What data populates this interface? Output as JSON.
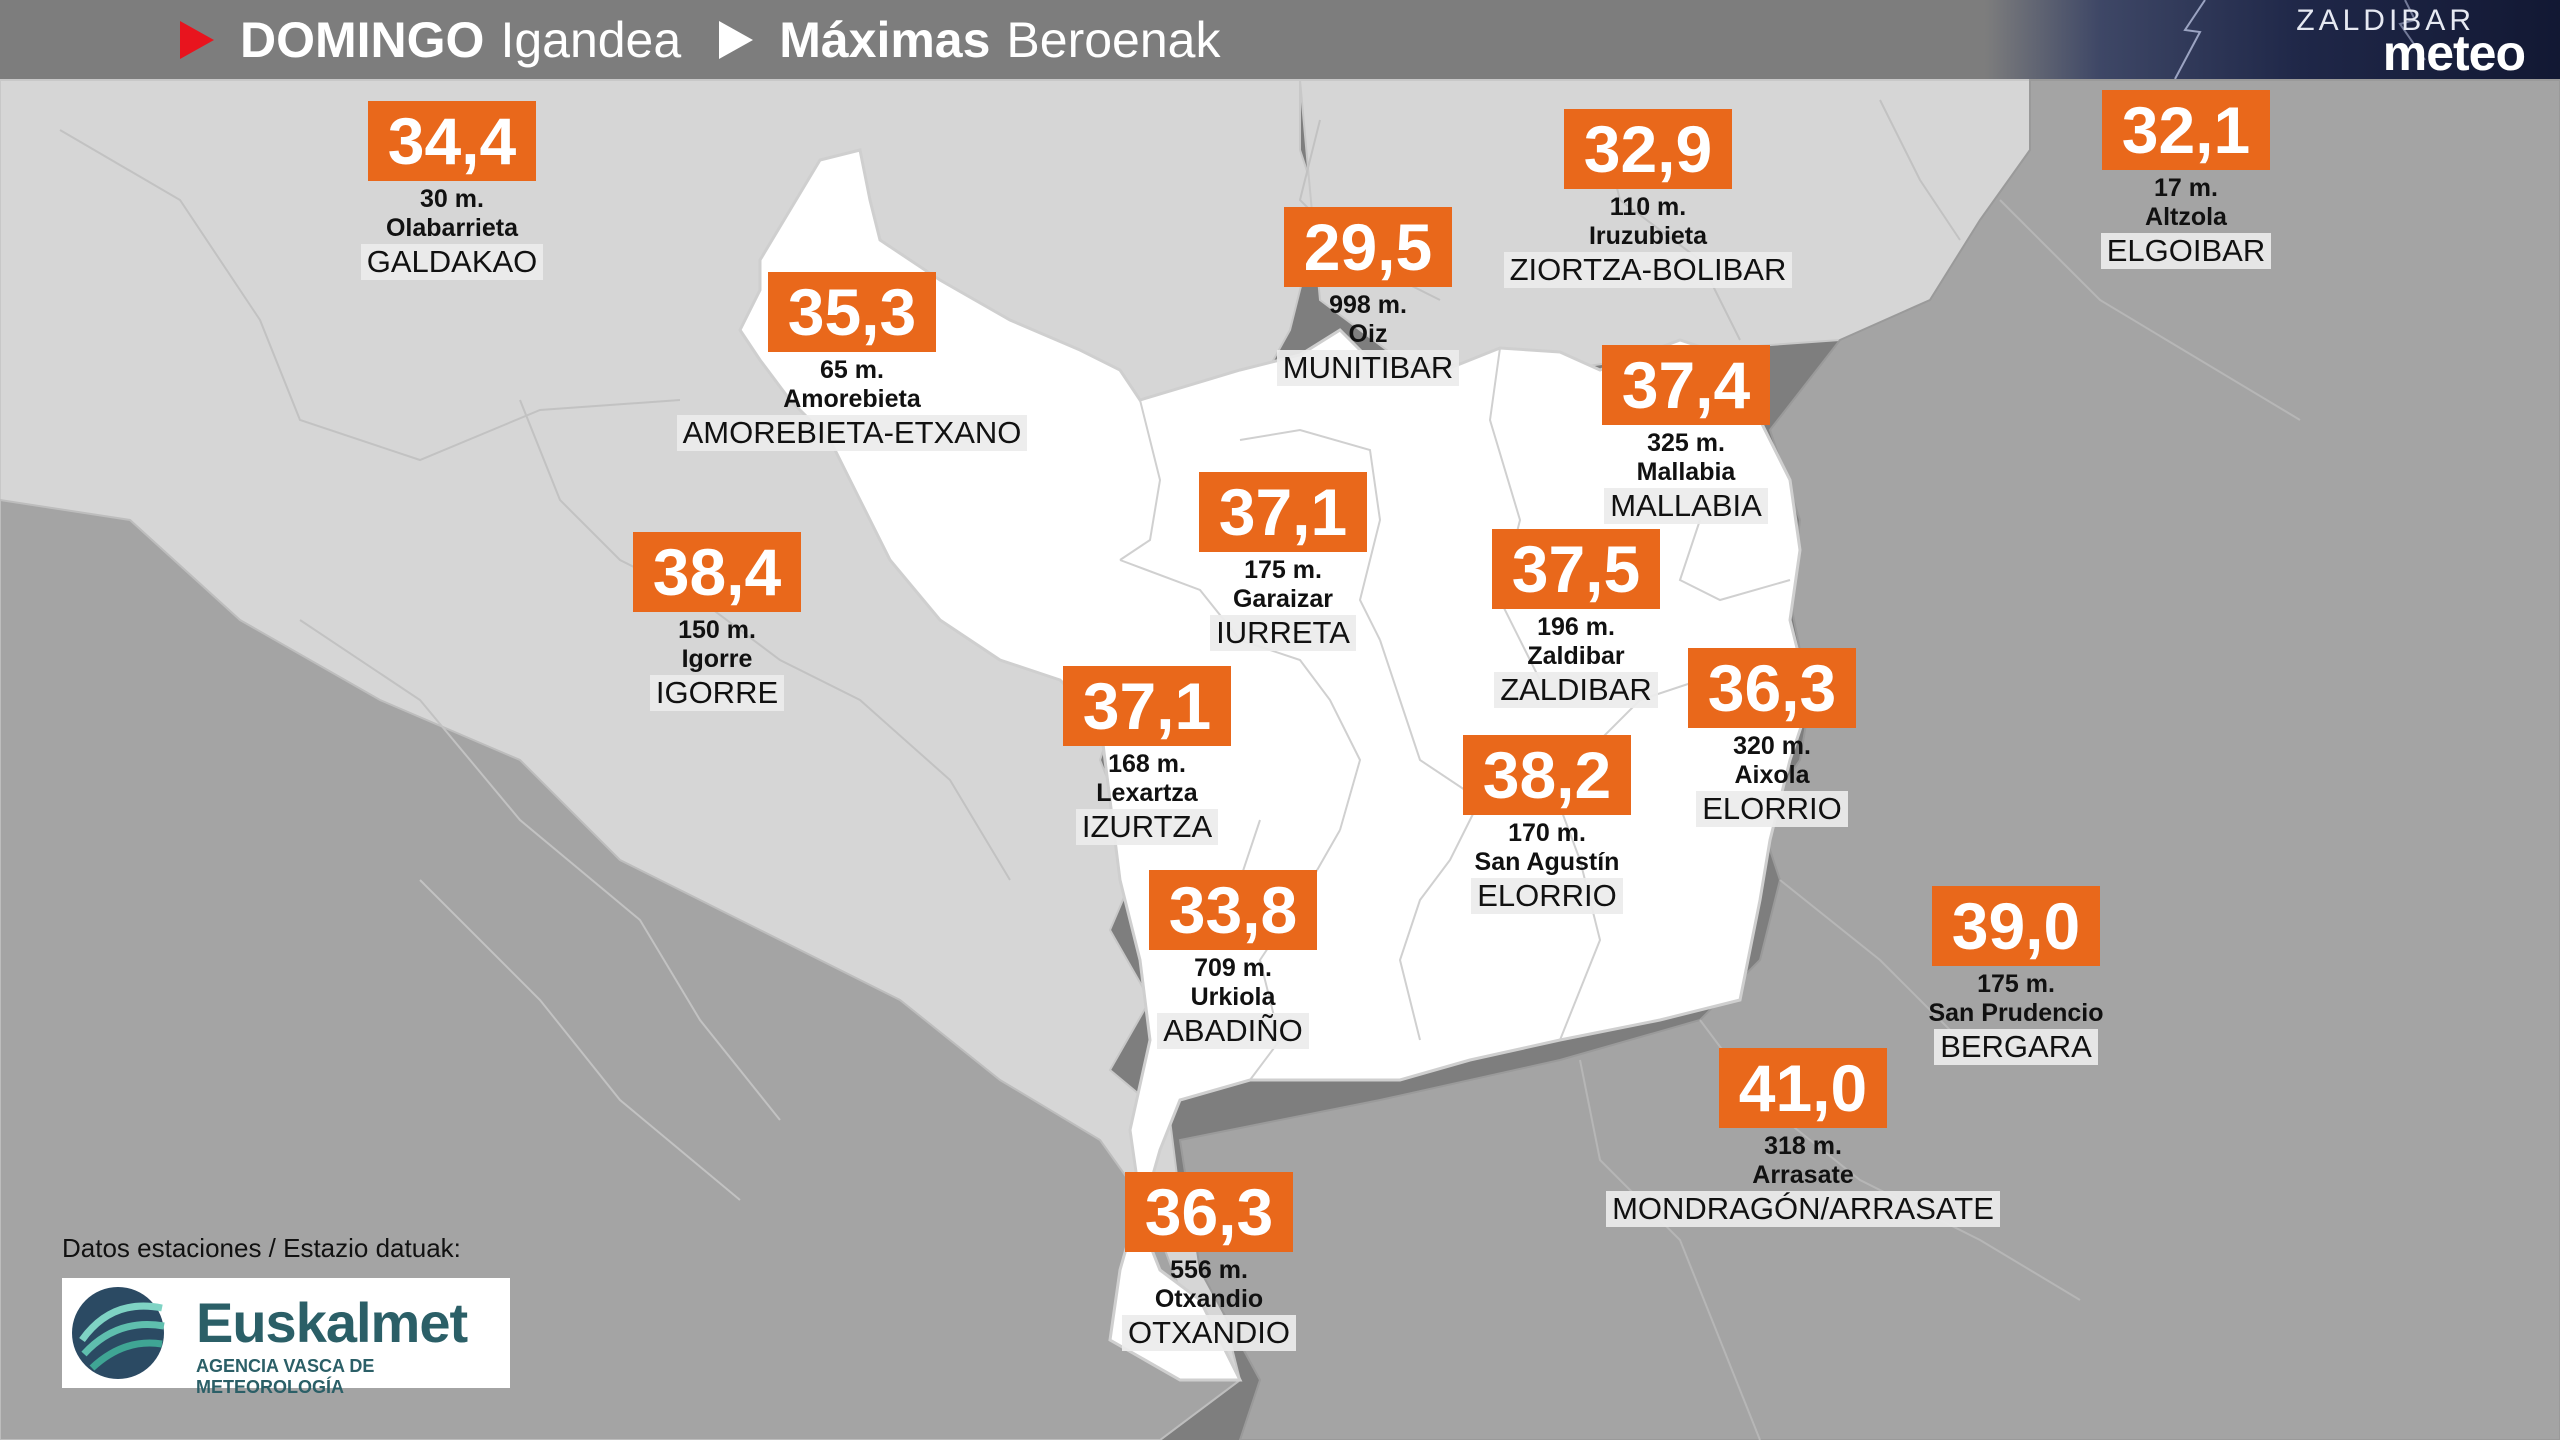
{
  "header": {
    "day_es": "DOMINGO",
    "day_eu": "Igandea",
    "title_es": "Máximas",
    "title_eu": "Beroenak"
  },
  "brand": {
    "top": "ZALDIBAR",
    "main": "meteo"
  },
  "credit": {
    "text": "Datos estaciones / Estazio datuak:",
    "logo_name": "Euskalmet",
    "logo_sub": "AGENCIA VASCA DE METEOROLOGÍA"
  },
  "colors": {
    "temp_box": "#e9681b",
    "highlight_region": "#ffffff",
    "nearby_region": "#d6d6d6",
    "far_region": "#a4a4a4",
    "header_red_arrow": "#e8141e"
  },
  "stations": [
    {
      "temp": "34,4",
      "alt": "30 m.",
      "name": "Olabarrieta",
      "muni": "GALDAKAO"
    },
    {
      "temp": "35,3",
      "alt": "65 m.",
      "name": "Amorebieta",
      "muni": "AMOREBIETA-ETXANO"
    },
    {
      "temp": "29,5",
      "alt": "998 m.",
      "name": "Oiz",
      "muni": "MUNITIBAR"
    },
    {
      "temp": "32,9",
      "alt": "110 m.",
      "name": "Iruzubieta",
      "muni": "ZIORTZA-BOLIBAR"
    },
    {
      "temp": "32,1",
      "alt": "17 m.",
      "name": "Altzola",
      "muni": "ELGOIBAR"
    },
    {
      "temp": "37,4",
      "alt": "325 m.",
      "name": "Mallabia",
      "muni": "MALLABIA"
    },
    {
      "temp": "37,1",
      "alt": "175 m.",
      "name": "Garaizar",
      "muni": "IURRETA"
    },
    {
      "temp": "38,4",
      "alt": "150 m.",
      "name": "Igorre",
      "muni": "IGORRE"
    },
    {
      "temp": "37,5",
      "alt": "196 m.",
      "name": "Zaldibar",
      "muni": "ZALDIBAR"
    },
    {
      "temp": "37,1",
      "alt": "168 m.",
      "name": "Lexartza",
      "muni": "IZURTZA"
    },
    {
      "temp": "36,3",
      "alt": "320 m.",
      "name": "Aixola",
      "muni": "ELORRIO"
    },
    {
      "temp": "38,2",
      "alt": "170 m.",
      "name": "San Agustín",
      "muni": "ELORRIO"
    },
    {
      "temp": "33,8",
      "alt": "709 m.",
      "name": "Urkiola",
      "muni": "ABADIÑO"
    },
    {
      "temp": "39,0",
      "alt": "175 m.",
      "name": "San Prudencio",
      "muni": "BERGARA"
    },
    {
      "temp": "41,0",
      "alt": "318 m.",
      "name": "Arrasate",
      "muni": "MONDRAGÓN/ARRASATE"
    },
    {
      "temp": "36,3",
      "alt": "556 m.",
      "name": "Otxandio",
      "muni": "OTXANDIO"
    }
  ]
}
